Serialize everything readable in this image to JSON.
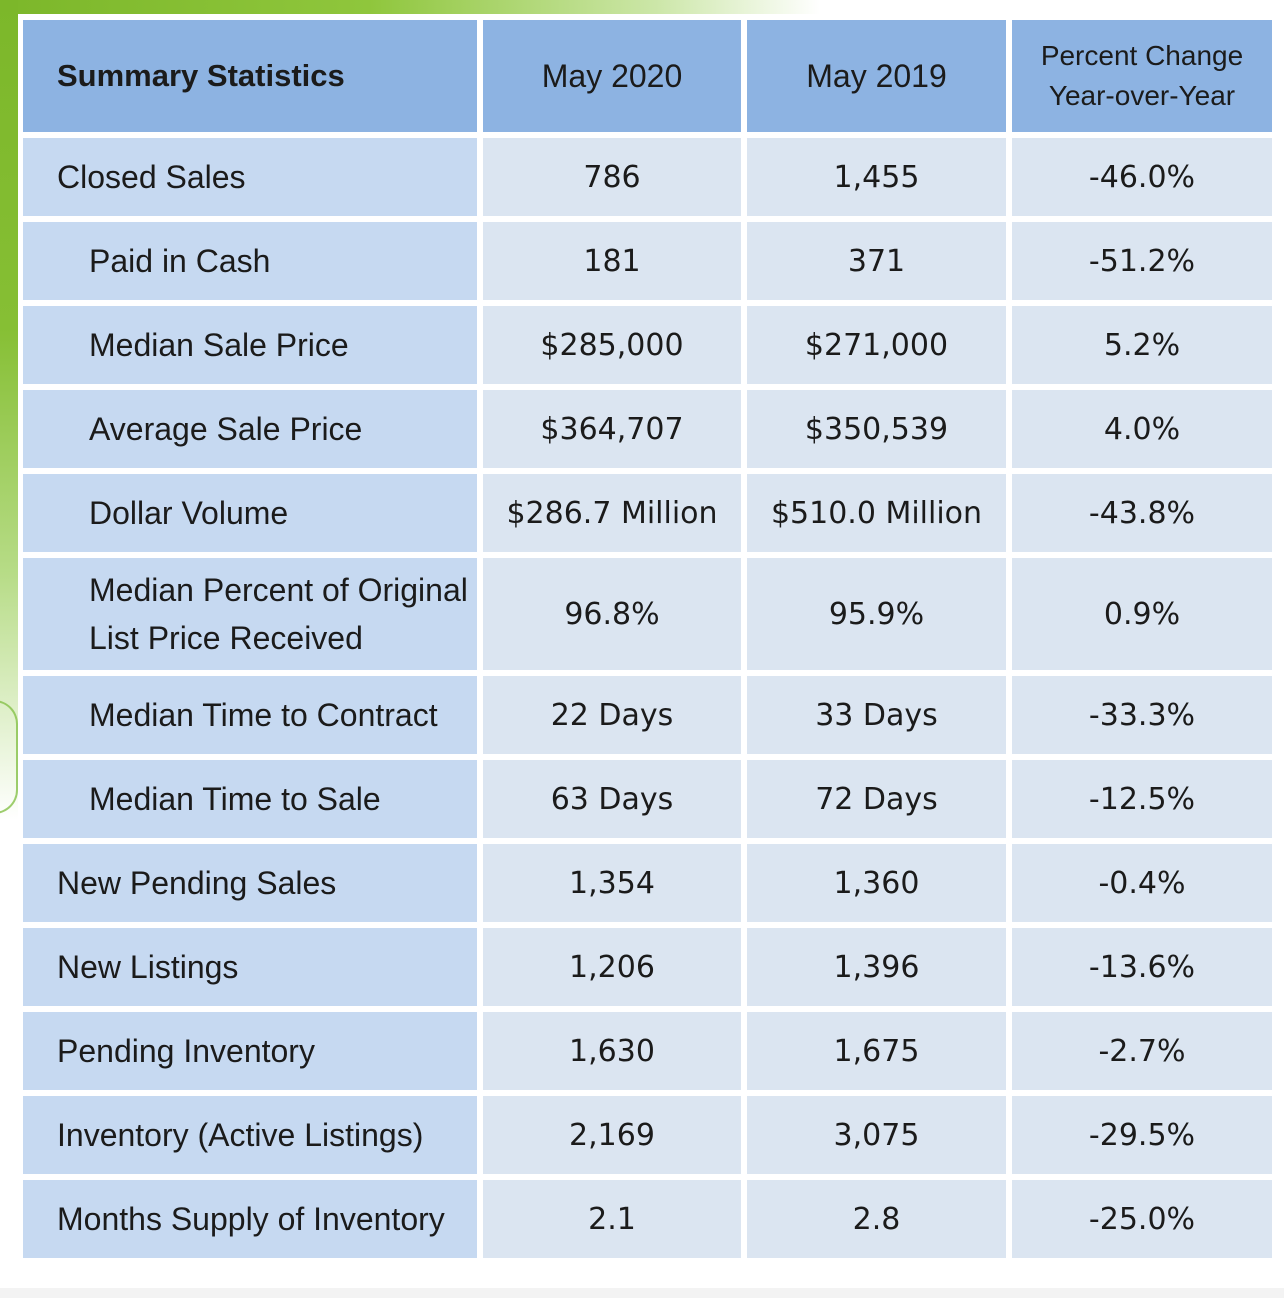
{
  "table": {
    "header": {
      "label": "Summary Statistics",
      "col1": "May 2020",
      "col2": "May 2019",
      "col3_line1": "Percent Change",
      "col3_line2": "Year-over-Year"
    },
    "rows": [
      {
        "label": "Closed Sales",
        "may2020": "786",
        "may2019": "1,455",
        "change": "-46.0%"
      },
      {
        "label": "Paid in Cash",
        "may2020": "181",
        "may2019": "371",
        "change": "-51.2%"
      },
      {
        "label": "Median Sale Price",
        "may2020": "$285,000",
        "may2019": "$271,000",
        "change": "5.2%"
      },
      {
        "label": "Average Sale Price",
        "may2020": "$364,707",
        "may2019": "$350,539",
        "change": "4.0%"
      },
      {
        "label": "Dollar Volume",
        "may2020": "$286.7 Million",
        "may2019": "$510.0 Million",
        "change": "-43.8%"
      },
      {
        "label_line1": "Median Percent of Original",
        "label_line2": "List Price Received",
        "may2020": "96.8%",
        "may2019": "95.9%",
        "change": "0.9%"
      },
      {
        "label": "Median Time to Contract",
        "may2020": "22 Days",
        "may2019": "33 Days",
        "change": "-33.3%"
      },
      {
        "label": "Median Time to Sale",
        "may2020": "63 Days",
        "may2019": "72 Days",
        "change": "-12.5%"
      },
      {
        "label": "New Pending Sales",
        "may2020": "1,354",
        "may2019": "1,360",
        "change": "-0.4%"
      },
      {
        "label": "New Listings",
        "may2020": "1,206",
        "may2019": "1,396",
        "change": "-13.6%"
      },
      {
        "label": "Pending Inventory",
        "may2020": "1,630",
        "may2019": "1,675",
        "change": "-2.7%"
      },
      {
        "label": "Inventory (Active Listings)",
        "may2020": "2,169",
        "may2019": "3,075",
        "change": "-29.5%"
      },
      {
        "label": "Months Supply of Inventory",
        "may2020": "2.1",
        "may2019": "2.8",
        "change": "-25.0%"
      }
    ]
  }
}
